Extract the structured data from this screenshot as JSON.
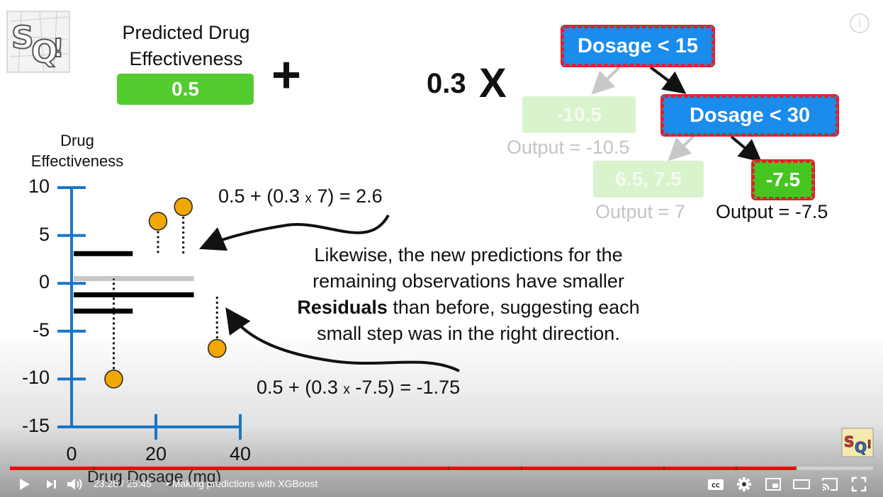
{
  "slide": {
    "title_line1": "Predicted Drug",
    "title_line2": "Effectiveness",
    "initial_prediction": "0.5",
    "plus": "+",
    "learning_rate": "0.3",
    "times": "X",
    "tree": {
      "root": "Dosage < 15",
      "left_leaf": "-10.5",
      "left_output": "Output = -10.5",
      "right_node": "Dosage < 30",
      "mid_leaf": "6.5, 7.5",
      "mid_output": "Output = 7",
      "right_leaf": "-7.5",
      "right_output": "Output = -7.5"
    },
    "colors": {
      "node_blue": "#1a8cec",
      "leaf_green": "#45c520",
      "dashed_red": "#e0202a",
      "point_orange": "#f0a800",
      "axis_blue": "#1777c5"
    },
    "equation_top": "0.5 + (0.3 ",
    "equation_top_x": "x",
    "equation_top_end": " 7) = 2.6",
    "equation_bottom": "0.5 + (0.3 ",
    "equation_bottom_x": "x",
    "equation_bottom_end": " -7.5) = -1.75",
    "explanation_line1": "Likewise, the new predictions for the",
    "explanation_line2": "remaining observations have smaller",
    "explanation_bold": "Residuals",
    "explanation_line3_rest": " than before, suggesting each",
    "explanation_line4": "small step was in the right direction."
  },
  "chart_data": {
    "type": "scatter",
    "ylabel_line1": "Drug",
    "ylabel_line2": "Effectiveness",
    "xlabel": "Drug Dosage (mg)",
    "y_ticks": [
      "10",
      "5",
      "0",
      "-5",
      "-10",
      "-15"
    ],
    "x_ticks": [
      "0",
      "20",
      "40"
    ],
    "ylim": [
      -15,
      10
    ],
    "xlim": [
      0,
      40
    ],
    "points": [
      {
        "x": 10,
        "y": -10
      },
      {
        "x": 20.5,
        "y": 6.5
      },
      {
        "x": 26.5,
        "y": 8
      },
      {
        "x": 34.5,
        "y": -6.8
      }
    ],
    "prediction_lines": [
      {
        "x_start": 0.5,
        "x_end": 29,
        "y": 0.5,
        "color": "#c7c7c7"
      },
      {
        "x_start": 0.5,
        "x_end": 29,
        "y": -1.2,
        "color": "#000000"
      },
      {
        "x_start": 0.5,
        "x_end": 14.5,
        "y": -2.9,
        "color": "#000000"
      },
      {
        "x_start": 0.5,
        "x_end": 14.5,
        "y": 3.1,
        "color": "#000000"
      }
    ]
  },
  "player": {
    "current_time": "23:28",
    "separator": " / ",
    "duration": "25:45",
    "chapter": "• Making predictions with XGBoost",
    "progress": 0.911,
    "chapter_marks": [
      0.097,
      0.507,
      0.592,
      0.757,
      0.841
    ],
    "icons": [
      "play-icon",
      "next-icon",
      "volume-icon",
      "captions-icon",
      "settings-icon",
      "miniplayer-icon",
      "theater-icon",
      "cast-icon",
      "fullscreen-icon"
    ],
    "captions_label": "CC",
    "info_label": "i"
  }
}
